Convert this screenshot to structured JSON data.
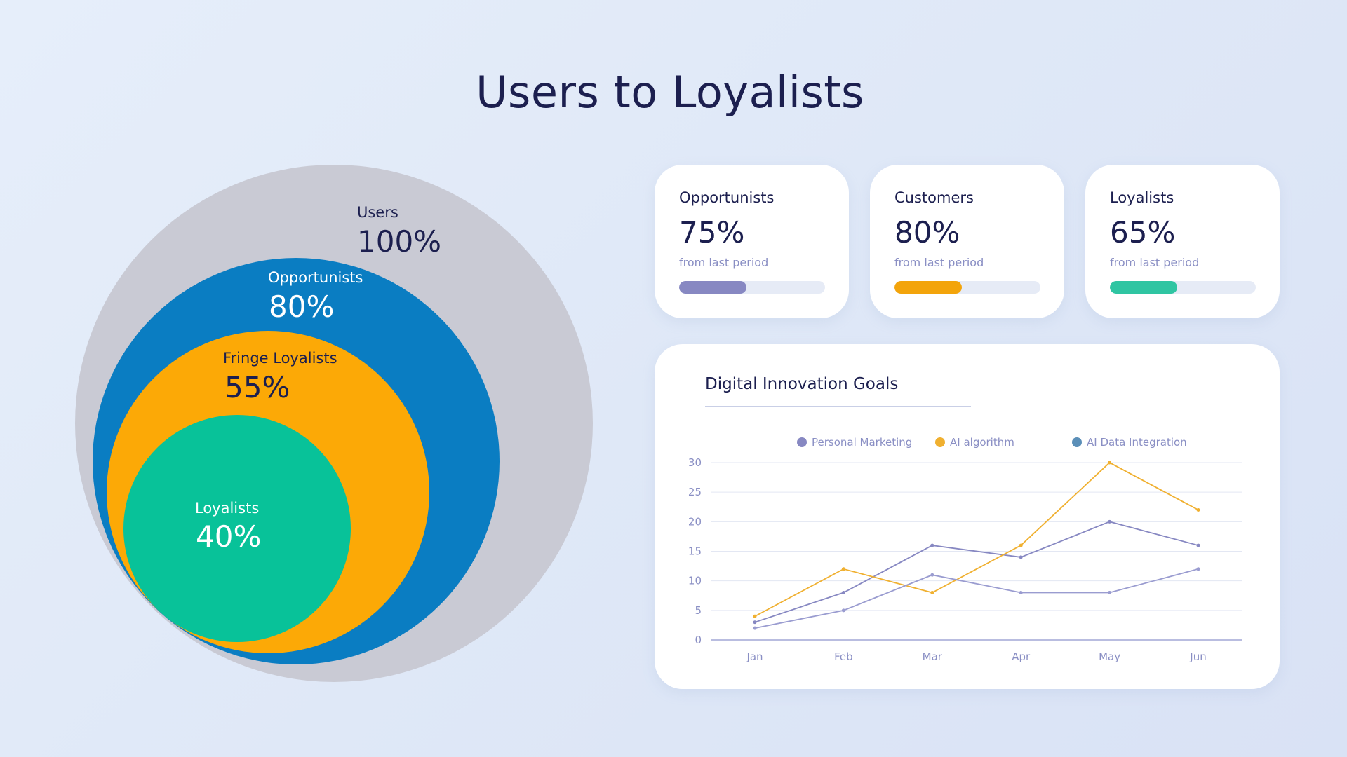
{
  "title": "Users to Loyalists",
  "funnel": [
    {
      "label": "Users",
      "value": "100%",
      "color": "#c9cad4"
    },
    {
      "label": "Opportunists",
      "value": "80%",
      "color": "#0a7dc2"
    },
    {
      "label": "Fringe Loyalists",
      "value": "55%",
      "color": "#fca906"
    },
    {
      "label": "Loyalists",
      "value": "40%",
      "color": "#08c299"
    }
  ],
  "cards": [
    {
      "label": "Opportunists",
      "value": "75%",
      "sub": "from last period",
      "progress": 0.46,
      "color": "#8788c2"
    },
    {
      "label": "Customers",
      "value": "80%",
      "sub": "from last period",
      "progress": 0.46,
      "color": "#f3a40b"
    },
    {
      "label": "Loyalists",
      "value": "65%",
      "sub": "from last period",
      "progress": 0.46,
      "color": "#2fc5a2"
    }
  ],
  "chart_data": {
    "type": "line",
    "title": "Digital Innovation Goals",
    "categories": [
      "Jan",
      "Feb",
      "Mar",
      "Apr",
      "May",
      "Jun"
    ],
    "series": [
      {
        "name": "Personal Marketing",
        "values": [
          3,
          8,
          16,
          14,
          20,
          16
        ],
        "color": "#8788c2"
      },
      {
        "name": "AI algorithm",
        "values": [
          4,
          12,
          8,
          16,
          30,
          22
        ],
        "color": "#f0b030"
      },
      {
        "name": "AI Data Integration",
        "values": [
          2,
          5,
          11,
          8,
          8,
          12
        ],
        "color": "#9a9cd0",
        "legend_color": "#5b8fb8"
      }
    ],
    "yticks": [
      0,
      5,
      10,
      15,
      20,
      25,
      30
    ],
    "ylim": [
      0,
      30
    ],
    "grid": true,
    "legend": "top"
  }
}
